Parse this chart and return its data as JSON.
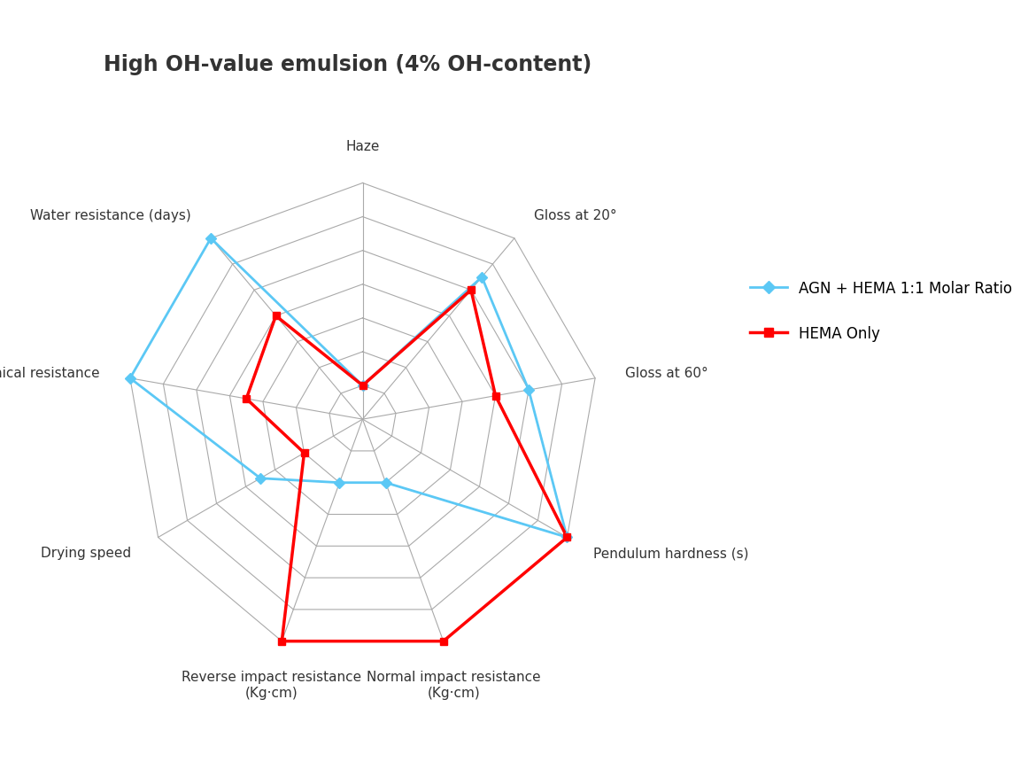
{
  "title": "High OH-value emulsion (4% OH-content)",
  "title_fontsize": 17,
  "title_fontweight": "bold",
  "title_color": "#333333",
  "categories": [
    "Haze",
    "Gloss at 20°",
    "Gloss at 60°",
    "Pendulum hardness (s)",
    "Normal impact resistance\n(Kg·cm)",
    "Reverse impact resistance\n(Kg·cm)",
    "Drying speed",
    "Chemical resistance",
    "Water resistance (days)"
  ],
  "num_rings": 7,
  "series": [
    {
      "label": "AGN + HEMA 1:1 Molar Ratio",
      "color": "#5bc8f5",
      "marker": "D",
      "linewidth": 2.0,
      "markersize": 6,
      "values": [
        1,
        5.5,
        5.0,
        7.0,
        2.0,
        2.0,
        3.5,
        7.0,
        7.0
      ]
    },
    {
      "label": "HEMA Only",
      "color": "#ff0000",
      "marker": "s",
      "linewidth": 2.5,
      "markersize": 6,
      "values": [
        1,
        5.0,
        4.0,
        7.0,
        7.0,
        7.0,
        2.0,
        3.5,
        4.0
      ]
    }
  ],
  "grid_color": "#aaaaaa",
  "grid_linewidth": 0.8,
  "spoke_color": "#aaaaaa",
  "spoke_linewidth": 0.8,
  "label_fontsize": 11,
  "background_color": "#ffffff",
  "legend_fontsize": 12
}
